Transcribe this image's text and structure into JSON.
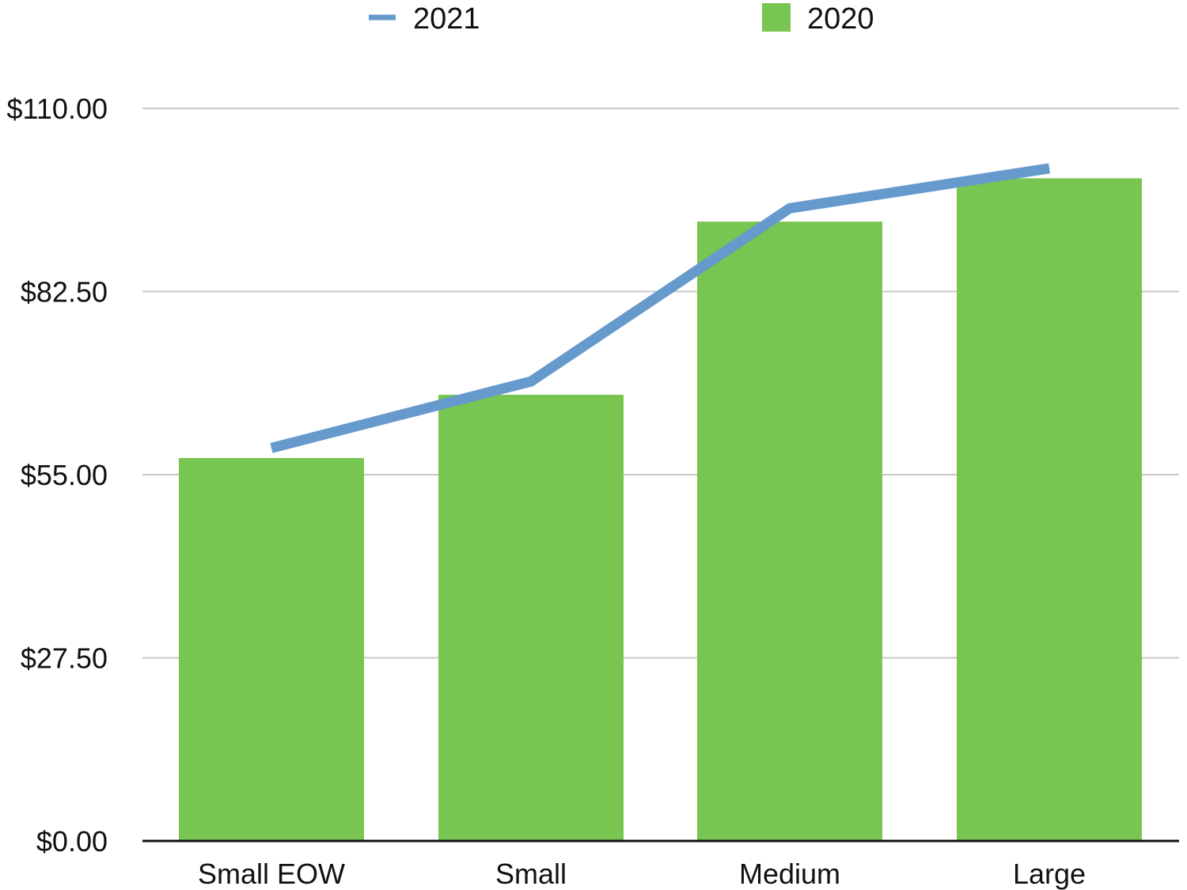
{
  "chart_data": {
    "type": "bar",
    "categories": [
      "Small EOW",
      "Small",
      "Medium",
      "Large"
    ],
    "series": [
      {
        "name": "2020",
        "type": "bar",
        "values": [
          57.5,
          67.0,
          93.0,
          99.5
        ]
      },
      {
        "name": "2021",
        "type": "line",
        "values": [
          59.0,
          69.0,
          95.0,
          101.0
        ]
      }
    ],
    "ylim": [
      0,
      110
    ],
    "yticks": [
      0,
      27.5,
      55,
      82.5,
      110
    ],
    "ytick_labels": [
      "$0.00",
      "$27.50",
      "$55.00",
      "$82.50",
      "$110.00"
    ],
    "grid": true,
    "legend_position": "top",
    "title": "",
    "xlabel": "",
    "ylabel": "",
    "colors": {
      "bar": "#78c552",
      "line": "#6699cc",
      "grid": "#c8c8c8",
      "axis": "#111111"
    }
  }
}
